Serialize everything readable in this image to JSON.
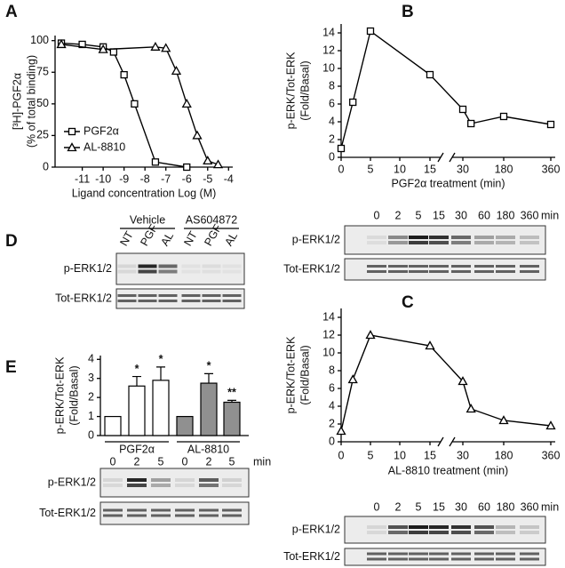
{
  "chart_data": [
    {
      "type": "line",
      "panel": "A",
      "ylabel": [
        "[³H]-PGF2α",
        "(% of total binding)"
      ],
      "xlabel": "Ligand concentration Log (M)",
      "xlim": [
        -12.3,
        -3.8
      ],
      "xticks": [
        -11,
        -10,
        -9,
        -8,
        -7,
        -6,
        -5,
        -4
      ],
      "ylim": [
        0,
        104
      ],
      "yticks": [
        0,
        25,
        50,
        75,
        100
      ],
      "legend": "lower left",
      "series": [
        {
          "name": "PGF2α",
          "marker": "square",
          "color": "#000000",
          "x": [
            -12,
            -11,
            -10,
            -9.5,
            -9,
            -8.5,
            -7.5,
            -6
          ],
          "values": [
            98,
            97,
            95,
            91,
            73,
            50,
            4,
            0
          ]
        },
        {
          "name": "AL-8810",
          "marker": "triangle",
          "color": "#000000",
          "x": [
            -12,
            -10,
            -7.5,
            -7,
            -6.5,
            -6,
            -5.5,
            -5,
            -4.5
          ],
          "values": [
            97,
            93,
            95,
            94,
            76,
            50,
            25,
            5,
            2
          ]
        }
      ]
    },
    {
      "type": "line",
      "panel": "B",
      "ylabel": [
        "p-ERK/Tot-ERK",
        "(Fold/Basal)"
      ],
      "xlabel": "PGF2α treatment (min)",
      "x_break": true,
      "xticks": [
        0,
        5,
        10,
        15,
        30,
        180,
        360
      ],
      "ylim": [
        0,
        15
      ],
      "yticks": [
        0,
        2,
        4,
        6,
        8,
        10,
        12,
        14
      ],
      "series": [
        {
          "marker": "square",
          "color": "#000000",
          "x": [
            0,
            2,
            5,
            15,
            30,
            60,
            180,
            360
          ],
          "values": [
            1,
            6.2,
            14.2,
            9.3,
            5.4,
            3.8,
            4.6,
            3.7
          ]
        }
      ]
    },
    {
      "type": "line",
      "panel": "C",
      "ylabel": [
        "p-ERK/Tot-ERK",
        "(Fold/Basal)"
      ],
      "xlabel": "AL-8810 treatment (min)",
      "x_break": true,
      "xticks": [
        0,
        5,
        10,
        15,
        30,
        180,
        360
      ],
      "ylim": [
        0,
        15
      ],
      "yticks": [
        0,
        2,
        4,
        6,
        8,
        10,
        12,
        14
      ],
      "series": [
        {
          "marker": "triangle",
          "color": "#000000",
          "x": [
            0,
            2,
            5,
            15,
            30,
            60,
            180,
            360
          ],
          "values": [
            1.2,
            7,
            12,
            10.8,
            6.8,
            3.7,
            2.4,
            1.8
          ]
        }
      ]
    },
    {
      "type": "bar",
      "panel": "E",
      "ylabel": [
        "p-ERK/Tot-ERK",
        "(Fold/Basal)"
      ],
      "categories": [
        "0",
        "2",
        "5",
        "0",
        "2",
        "5"
      ],
      "x_unit": "min",
      "groups": [
        "PGF2α",
        "AL-8810"
      ],
      "values": [
        1,
        2.6,
        2.9,
        1,
        2.75,
        1.75
      ],
      "errors": [
        0,
        0.5,
        0.7,
        0,
        0.5,
        0.1
      ],
      "significance": [
        null,
        "*",
        "*",
        null,
        "*",
        "**"
      ],
      "colors": [
        "#ffffff",
        "#ffffff",
        "#ffffff",
        "#909090",
        "#909090",
        "#909090"
      ],
      "ylim": [
        0,
        4.2
      ],
      "yticks": [
        0,
        1,
        2,
        3,
        4
      ]
    }
  ],
  "blots": [
    {
      "lanes": [
        "0",
        "2",
        "5",
        "15",
        "30",
        "60",
        "180",
        "360"
      ],
      "unit": "min",
      "rows": [
        "p-ERK1/2",
        "Tot-ERK1/2"
      ]
    },
    {
      "lanes": [
        "0",
        "2",
        "5",
        "15",
        "30",
        "60",
        "180",
        "360"
      ],
      "unit": "min",
      "rows": [
        "p-ERK1/2",
        "Tot-ERK1/2"
      ]
    },
    {
      "panel": "D",
      "groups": [
        "Vehicle",
        "AS604872"
      ],
      "lanes": [
        "NT",
        "PGF",
        "AL",
        "NT",
        "PGF",
        "AL"
      ],
      "rows": [
        "p-ERK1/2",
        "Tot-ERK1/2"
      ]
    },
    {
      "rows": [
        "p-ERK1/2",
        "Tot-ERK1/2"
      ]
    }
  ]
}
